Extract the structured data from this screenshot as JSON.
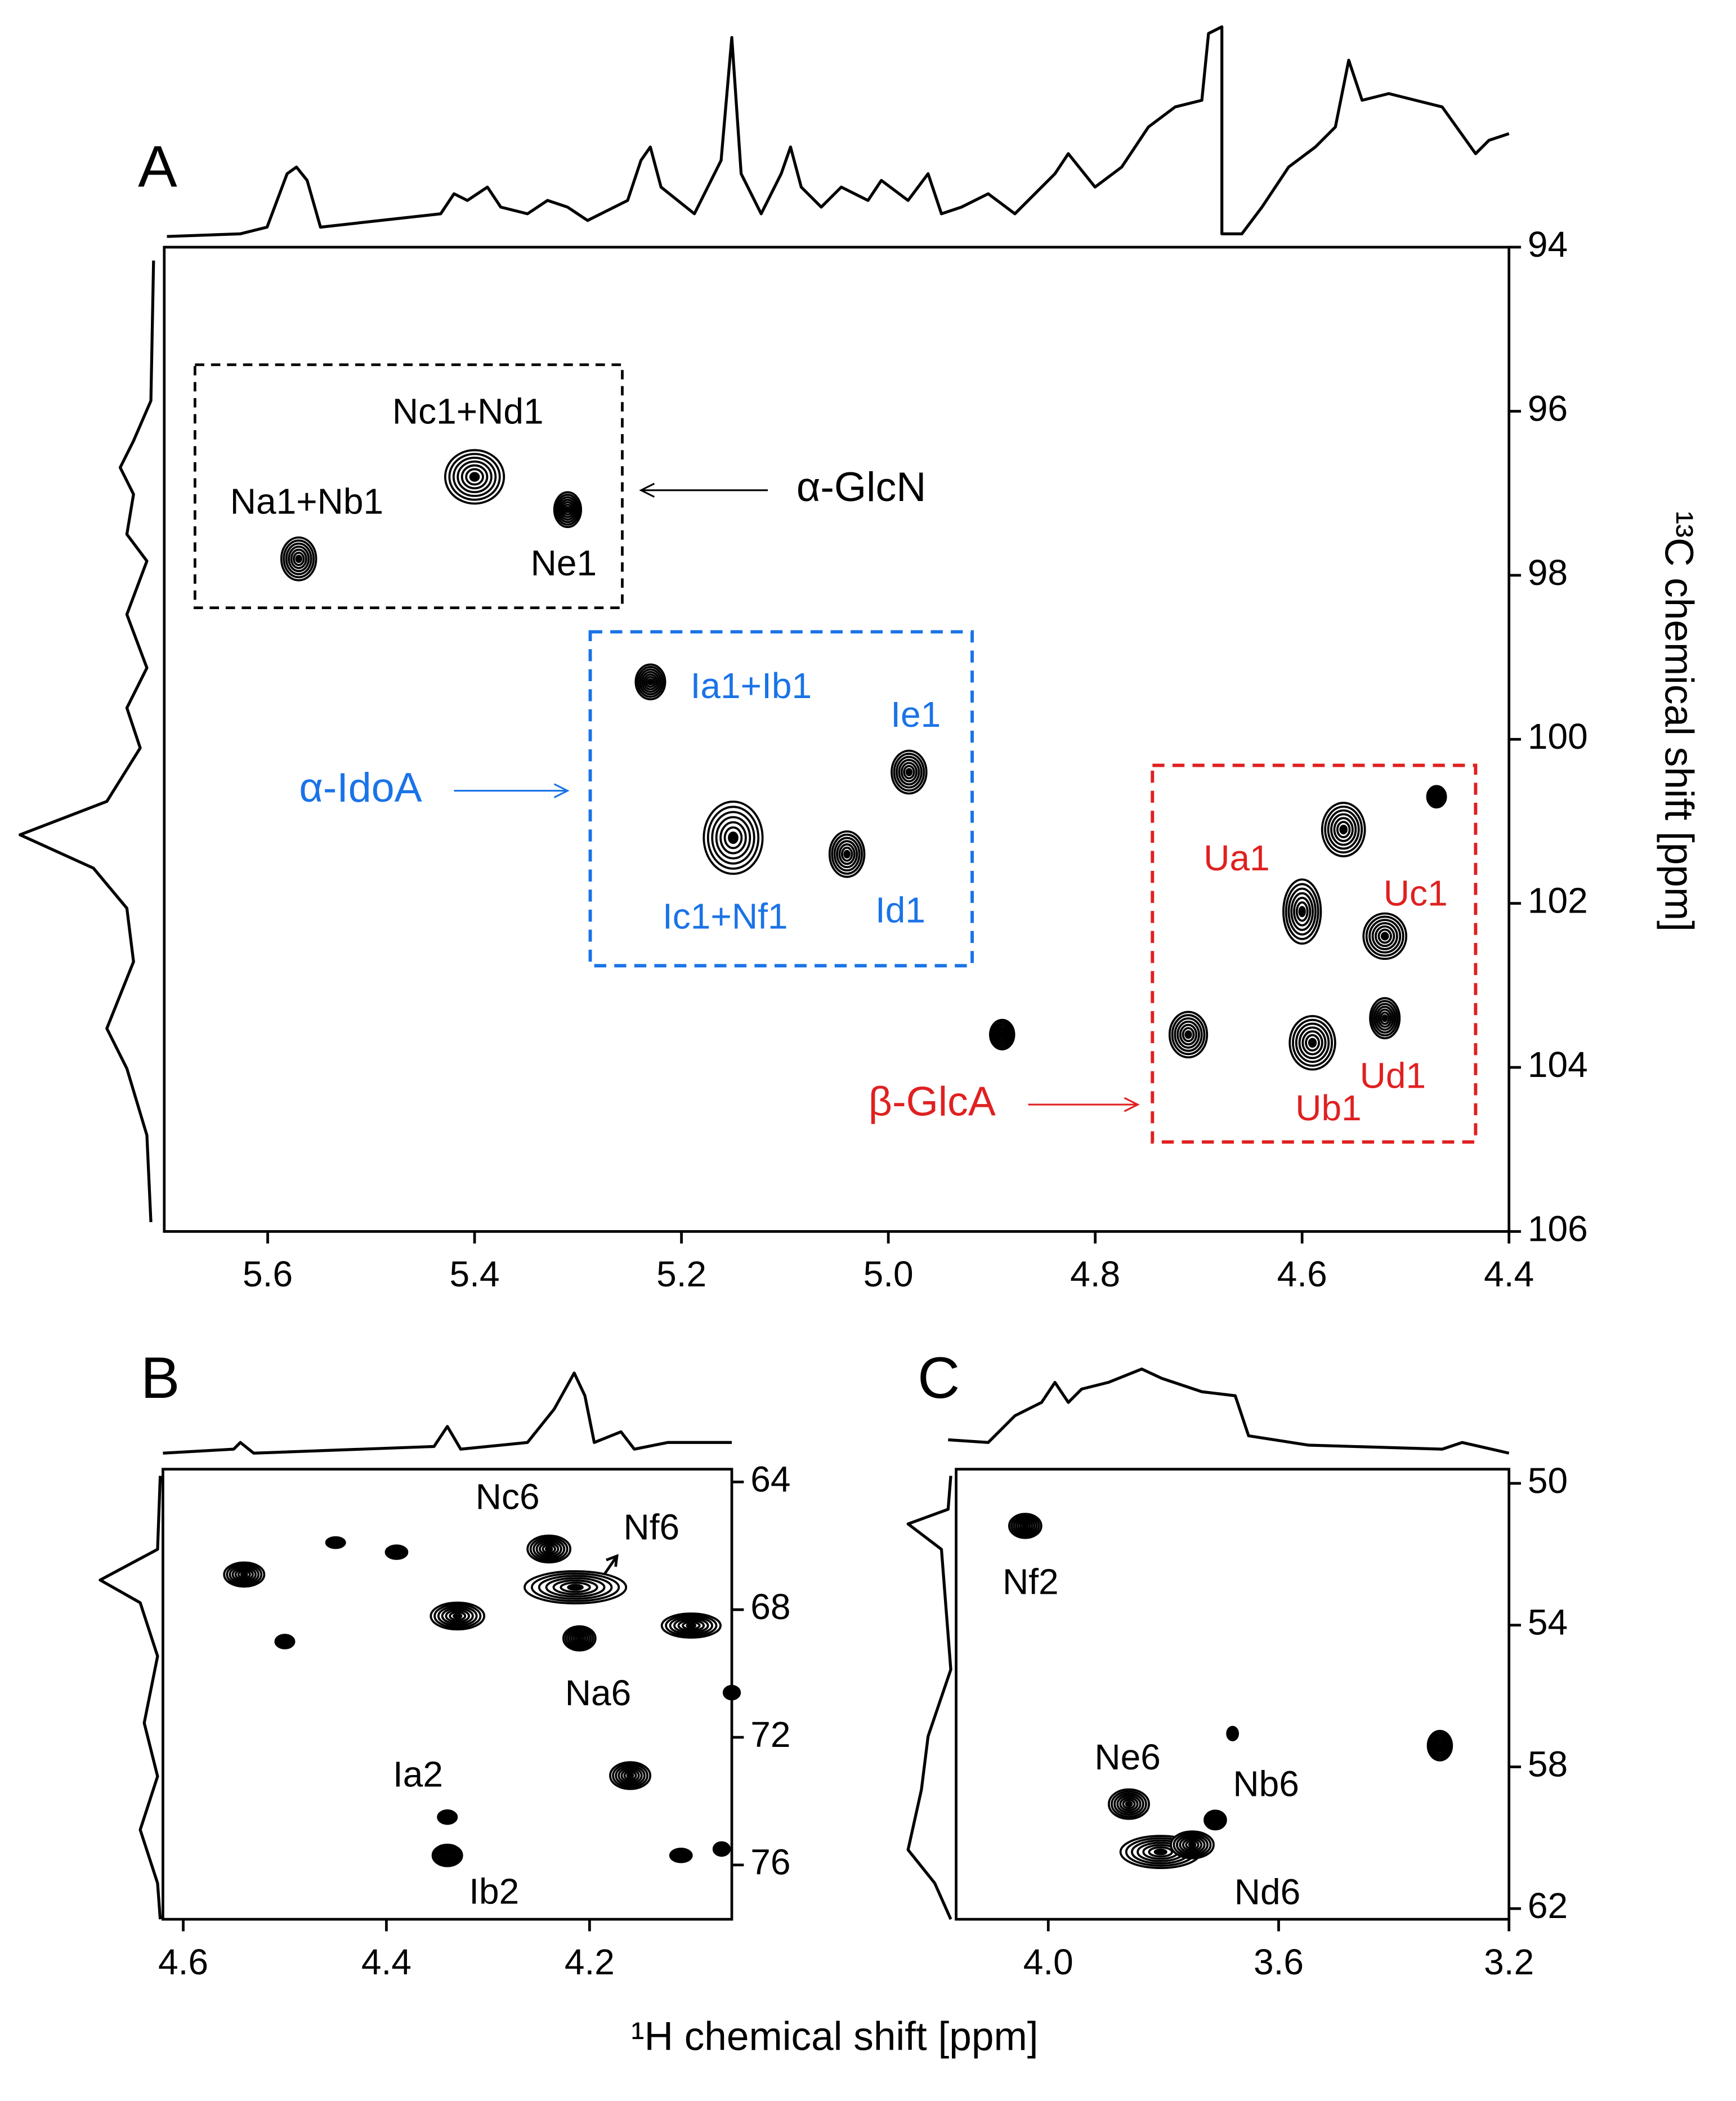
{
  "chart_data": [
    {
      "type": "scatter",
      "panel": "A",
      "xlim": [
        5.7,
        4.4
      ],
      "ylim": [
        94,
        106
      ],
      "xticks": [
        5.6,
        5.4,
        5.2,
        {
          "value": 5,
          "label": "5.0"
        },
        4.8,
        4.6,
        4.4
      ],
      "yticks": [
        94,
        96,
        98,
        100,
        102,
        104,
        106
      ],
      "y_label": "¹³C chemical shift [ppm]",
      "x": [
        5.57,
        5.4,
        5.31,
        5.23,
        4.98,
        5.15,
        5.04,
        4.89,
        4.6,
        4.52,
        4.52,
        4.59,
        4.71,
        4.47,
        4.56
      ],
      "y": [
        97.8,
        96.8,
        97.2,
        99.3,
        100.4,
        101.2,
        101.4,
        103.6,
        102.1,
        102.4,
        103.4,
        103.7,
        103.6,
        100.7,
        101.1
      ],
      "labels": [
        "Na1+Nb1",
        "Nc1+Nd1",
        "Ne1",
        "Ia1+Ib1",
        "Ie1",
        "Ic1+Nf1",
        "Id1",
        null,
        "Ua1",
        "Uc1",
        "Ud1",
        "Ub1",
        null,
        null,
        null
      ],
      "label_colors": [
        "#000",
        "#000",
        "#000",
        "#1a73e8",
        "#1a73e8",
        "#1a73e8",
        "#1a73e8",
        null,
        "#e02020",
        "#e02020",
        "#e02020",
        "#e02020",
        null,
        null,
        null
      ],
      "annotations": [
        {
          "text": "α-GlcN",
          "color": "#000"
        },
        {
          "text": "α-IdoA",
          "color": "#1a73e8"
        },
        {
          "text": "β-GlcA",
          "color": "#e02020"
        }
      ]
    },
    {
      "type": "scatter",
      "panel": "B",
      "xlim": [
        4.62,
        4.06
      ],
      "ylim": [
        63.6,
        77.7
      ],
      "xticks": [
        4.6,
        4.4,
        4.2
      ],
      "yticks": [
        64,
        68,
        72,
        76
      ],
      "x": [
        4.24,
        4.214,
        4.21,
        4.34,
        4.34,
        4.54,
        4.5,
        4.45,
        4.39,
        4.33,
        4.1,
        4.06,
        4.16,
        4.11,
        4.07
      ],
      "y": [
        66.1,
        67.3,
        68.9,
        74.5,
        75.7,
        66.9,
        69.0,
        65.9,
        66.2,
        68.2,
        68.5,
        70.6,
        73.2,
        75.7,
        75.5
      ],
      "labels": [
        "Nc6",
        "Nf6",
        "Na6",
        "Ia2",
        "Ib2",
        null,
        null,
        null,
        null,
        null,
        null,
        null,
        null,
        null,
        null
      ]
    },
    {
      "type": "scatter",
      "panel": "C",
      "xlim": [
        4.16,
        3.2
      ],
      "ylim": [
        49.6,
        62.3
      ],
      "xticks": [
        {
          "value": 4,
          "label": "4.0"
        },
        3.6,
        3.2
      ],
      "yticks": [
        50,
        54,
        58,
        62
      ],
      "x": [
        4.04,
        3.86,
        3.805,
        3.71,
        3.68,
        3.32,
        3.75
      ],
      "y": [
        51.2,
        59.05,
        60.4,
        59.5,
        57.06,
        57.4,
        60.2
      ],
      "labels": [
        "Nf2",
        "Ne6",
        "Nd6",
        "Nb6",
        null,
        null,
        null
      ]
    },
    {
      "type": "label",
      "x_label": "¹H chemical shift [ppm]"
    }
  ]
}
